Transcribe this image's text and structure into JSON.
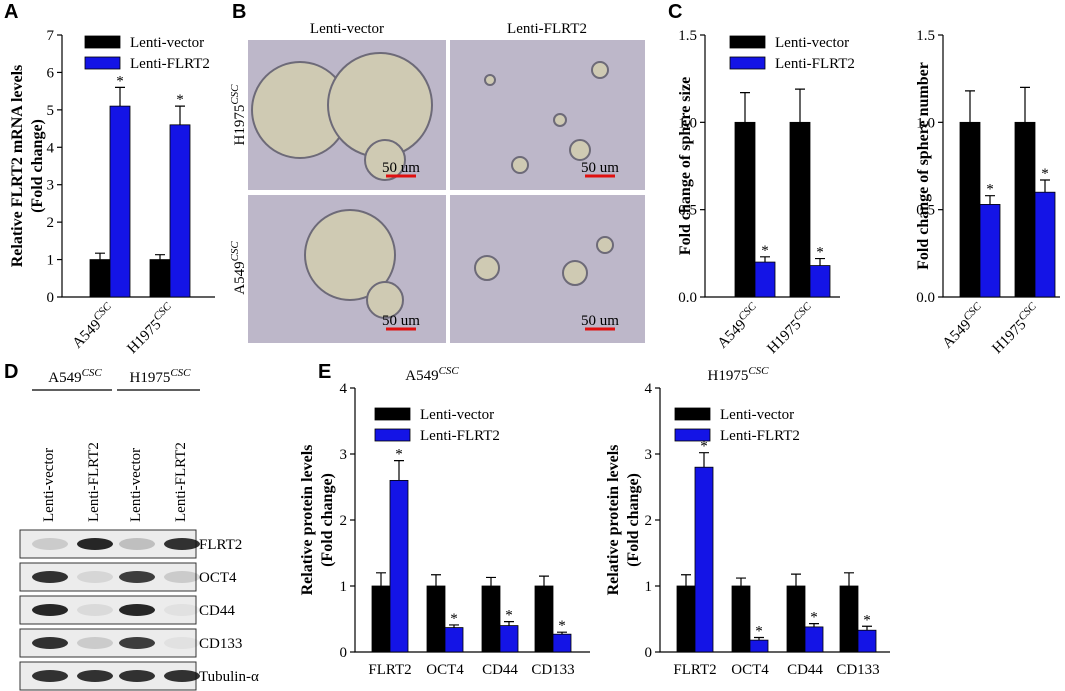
{
  "panel_labels": [
    "A",
    "B",
    "C",
    "D",
    "E"
  ],
  "chart_data": [
    {
      "type": "bar",
      "ylabel": [
        "Relative FLRT2 mRNA levels",
        "(Fold change)"
      ],
      "categories": [
        [
          "A549",
          "CSC"
        ],
        [
          "H1975",
          "CSC"
        ]
      ],
      "xtick_rotation": 45,
      "ylim": [
        0,
        7
      ],
      "yticks": [
        0,
        1,
        2,
        3,
        4,
        5,
        6,
        7
      ],
      "legend": "upper left",
      "series": [
        {
          "name": "Lenti-vector",
          "color": "#000000",
          "values": [
            1,
            1
          ],
          "errors": [
            0.17,
            0.13
          ]
        },
        {
          "name": "Lenti-FLRT2",
          "color": "#1414e6",
          "values": [
            5.1,
            4.6
          ],
          "errors": [
            0.5,
            0.5
          ],
          "sig_labels": [
            "*",
            "*"
          ]
        }
      ]
    },
    {
      "type": "bar",
      "ylabel": [
        "Fold change of sphere size"
      ],
      "categories": [
        [
          "A549",
          "CSC"
        ],
        [
          "H1975",
          "CSC"
        ]
      ],
      "xtick_rotation": 45,
      "ylim": [
        0,
        1.5
      ],
      "yticks": [
        {
          "value": 0,
          "label": "0.0"
        },
        {
          "value": 0.5,
          "label": "0.5"
        },
        {
          "value": 1,
          "label": "1.0"
        },
        {
          "value": 1.5,
          "label": "1.5"
        }
      ],
      "legend": "upper left",
      "series": [
        {
          "name": "Lenti-vector",
          "color": "#000000",
          "values": [
            1,
            1
          ],
          "errors": [
            0.17,
            0.19
          ]
        },
        {
          "name": "Lenti-FLRT2",
          "color": "#1414e6",
          "values": [
            0.2,
            0.18
          ],
          "errors": [
            0.03,
            0.04
          ],
          "sig_labels": [
            "*",
            "*"
          ]
        }
      ]
    },
    {
      "type": "bar",
      "ylabel": [
        "Fold change of sphere number"
      ],
      "categories": [
        [
          "A549",
          "CSC"
        ],
        [
          "H1975",
          "CSC"
        ]
      ],
      "xtick_rotation": 45,
      "ylim": [
        0,
        1.5
      ],
      "yticks": [
        {
          "value": 0,
          "label": "0.0"
        },
        {
          "value": 0.5,
          "label": "0.5"
        },
        {
          "value": 1,
          "label": "1.0"
        },
        {
          "value": 1.5,
          "label": "1.5"
        }
      ],
      "series": [
        {
          "color": "#000000",
          "values": [
            1,
            1
          ],
          "errors": [
            0.18,
            0.2
          ]
        },
        {
          "color": "#1414e6",
          "values": [
            0.53,
            0.6
          ],
          "errors": [
            0.05,
            0.07
          ],
          "sig_labels": [
            "*",
            "*"
          ]
        }
      ]
    },
    {
      "type": "bar",
      "title": [
        "A549",
        "CSC"
      ],
      "ylabel": [
        "Relative protein levels",
        "(Fold change)"
      ],
      "categories": [
        "FLRT2",
        "OCT4",
        "CD44",
        "CD133"
      ],
      "ylim": [
        0,
        4
      ],
      "yticks": [
        0,
        1,
        2,
        3,
        4
      ],
      "legend": "upper left",
      "series": [
        {
          "name": "Lenti-vector",
          "color": "#000000",
          "values": [
            1,
            1,
            1,
            1
          ],
          "errors": [
            0.2,
            0.17,
            0.13,
            0.15
          ]
        },
        {
          "name": "Lenti-FLRT2",
          "color": "#1414e6",
          "values": [
            2.6,
            0.37,
            0.4,
            0.27
          ],
          "errors": [
            0.3,
            0.04,
            0.06,
            0.03
          ],
          "sig_labels": [
            "*",
            "*",
            "*",
            "*"
          ]
        }
      ]
    },
    {
      "type": "bar",
      "title": [
        "H1975",
        "CSC"
      ],
      "ylabel": [
        "Relative protein levels",
        "(Fold change)"
      ],
      "categories": [
        "FLRT2",
        "OCT4",
        "CD44",
        "CD133"
      ],
      "ylim": [
        0,
        4
      ],
      "yticks": [
        0,
        1,
        2,
        3,
        4
      ],
      "legend": "upper left",
      "series": [
        {
          "name": "Lenti-vector",
          "color": "#000000",
          "values": [
            1,
            1,
            1,
            1
          ],
          "errors": [
            0.17,
            0.12,
            0.18,
            0.2
          ]
        },
        {
          "name": "Lenti-FLRT2",
          "color": "#1414e6",
          "values": [
            2.8,
            0.18,
            0.38,
            0.33
          ],
          "errors": [
            0.22,
            0.04,
            0.05,
            0.06
          ],
          "sig_labels": [
            "*",
            "*",
            "*",
            "*"
          ]
        }
      ]
    }
  ],
  "micrographs": {
    "columns": [
      "Lenti-vector",
      "Lenti-FLRT2"
    ],
    "rows": [
      [
        "H1975",
        "CSC"
      ],
      [
        "A549",
        "CSC"
      ]
    ],
    "scale_bars": [
      "50 um",
      "50 um",
      "50 um",
      "50 um"
    ]
  },
  "western_blot": {
    "groups": [
      [
        "A549",
        "CSC"
      ],
      [
        "H1975",
        "CSC"
      ]
    ],
    "lanes": [
      "Lenti-vector",
      "Lenti-FLRT2",
      "Lenti-vector",
      "Lenti-FLRT2"
    ],
    "bands": [
      "FLRT2",
      "OCT4",
      "CD44",
      "CD133",
      "Tubulin-α"
    ]
  }
}
